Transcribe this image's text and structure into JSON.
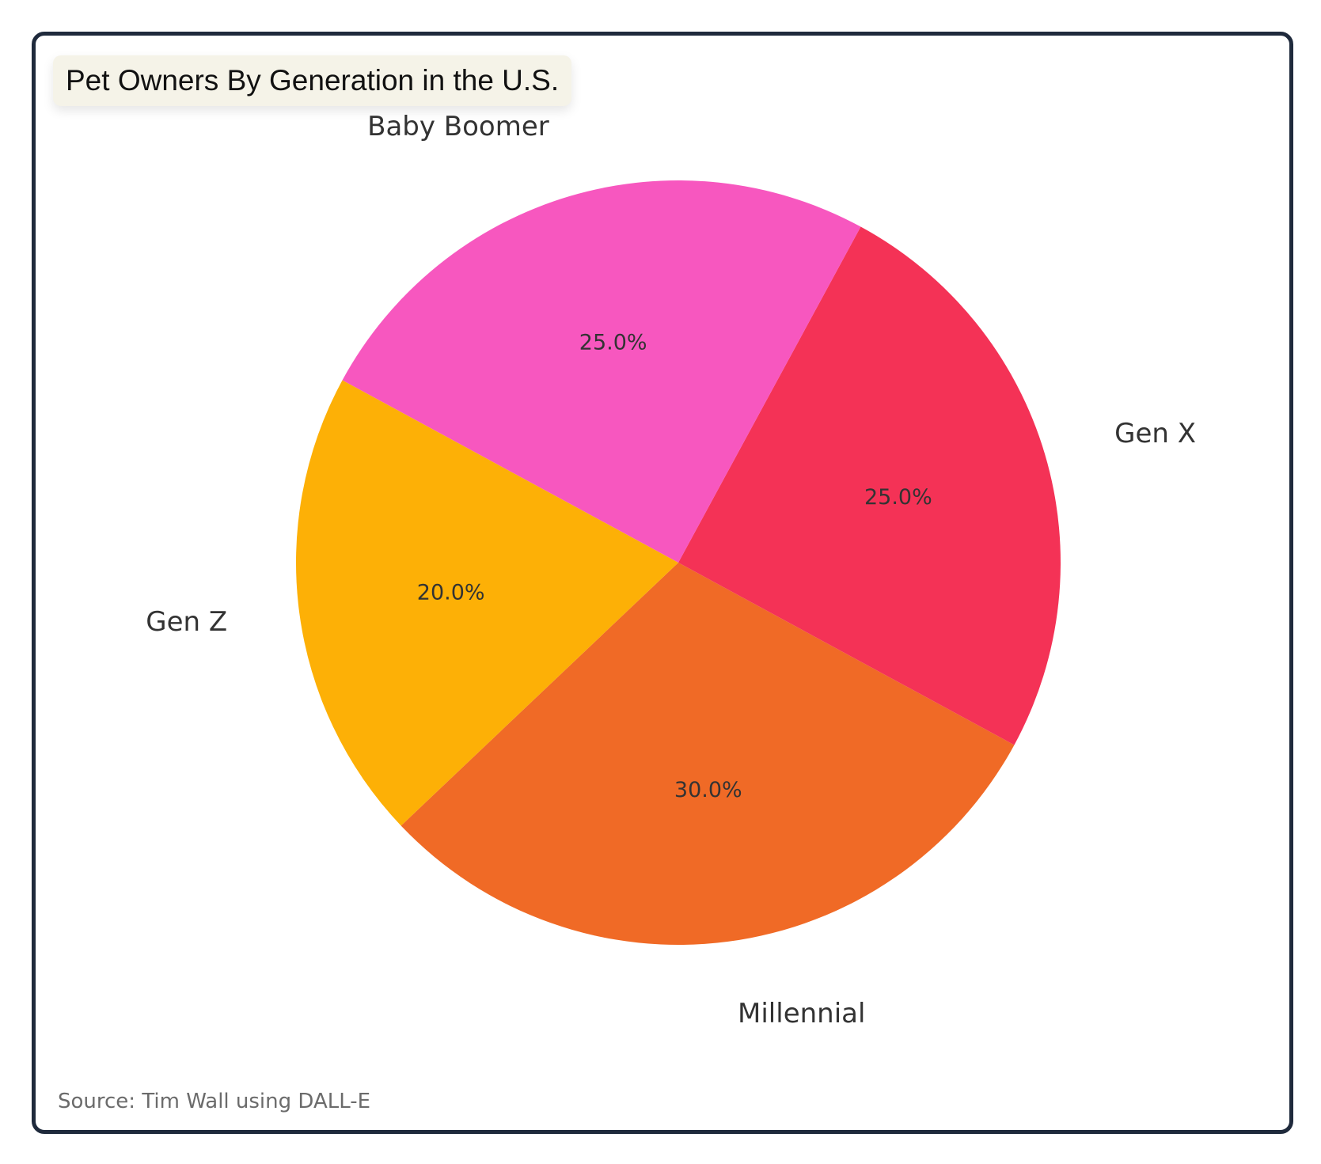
{
  "header": {
    "title": "Pet Owners By Generation in the U.S."
  },
  "chart_data": {
    "type": "pie",
    "categories": [
      "Millennial",
      "Gen X",
      "Baby Boomer",
      "Gen Z"
    ],
    "values": [
      30.0,
      25.0,
      25.0,
      20.0
    ],
    "labels": [
      "30.0%",
      "25.0%",
      "25.0%",
      "20.0%"
    ],
    "colors": [
      "#f06a26",
      "#f43256",
      "#f757bf",
      "#fdb006"
    ],
    "legend": "none"
  },
  "footer": {
    "source": "Source: Tim Wall using DALL-E"
  }
}
